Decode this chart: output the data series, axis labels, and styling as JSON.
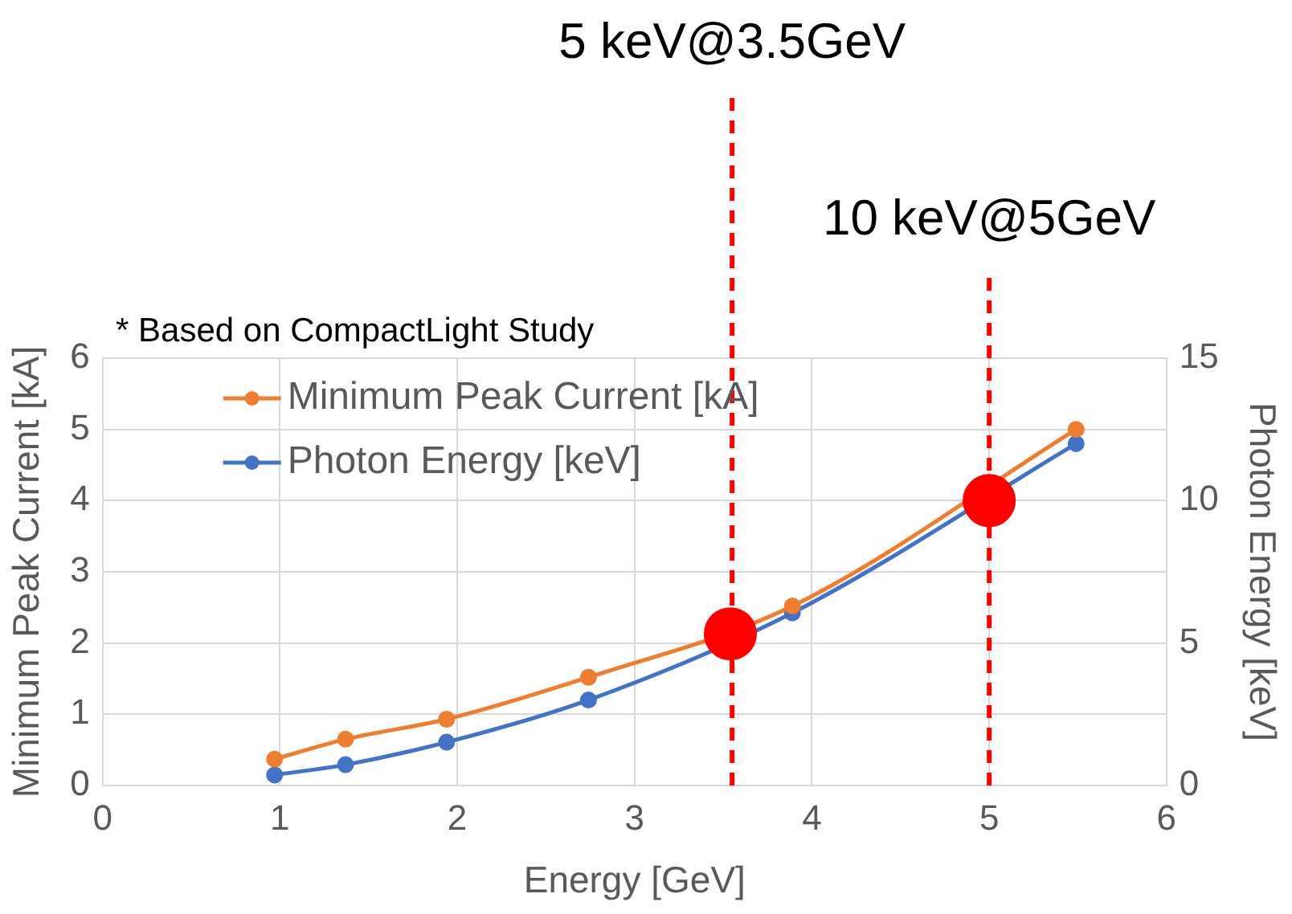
{
  "chart_data": {
    "type": "line",
    "xlabel": "Energy [GeV]",
    "ylabel": "Minimum Peak Current [kA]",
    "y2label": "Photon Energy [keV]",
    "xlim": [
      0,
      6
    ],
    "xticks": [
      0,
      1,
      2,
      3,
      4,
      5,
      6
    ],
    "ylim": [
      0,
      6
    ],
    "yticks": [
      0,
      1,
      2,
      3,
      4,
      5,
      6
    ],
    "y2lim": [
      0,
      15
    ],
    "y2ticks": [
      0,
      5,
      10,
      15
    ],
    "series": [
      {
        "name": "Minimum Peak Current [kA]",
        "color": "#ed7d31",
        "x": [
          0.97,
          1.37,
          1.94,
          2.74,
          3.89,
          5.49
        ],
        "values": [
          0.37,
          0.65,
          0.93,
          1.52,
          2.52,
          5.0
        ]
      },
      {
        "name": "Photon Energy [keV]",
        "color": "#4472c4",
        "axis": "y2",
        "x": [
          0.97,
          1.37,
          1.94,
          2.74,
          3.89,
          5.49
        ],
        "values": [
          0.37,
          0.73,
          1.52,
          3.0,
          6.06,
          12.0
        ]
      },
      {
        "type": "scatter",
        "color": "#ff0000",
        "x": [
          3.54,
          5.0
        ],
        "values": [
          2.13,
          4.0
        ]
      }
    ],
    "ref_lines": [
      {
        "axis": "x",
        "value": 3.55,
        "label": "5 keV@3.5GeV",
        "color": "#ff0000",
        "line_style": "dashed"
      },
      {
        "axis": "x",
        "value": 5.0,
        "label": "10 keV@5GeV",
        "color": "#ff0000",
        "line_style": "dashed"
      }
    ],
    "annotations": [
      "* Based on CompactLight Study"
    ],
    "grid": true,
    "legend": "top left",
    "marker": "circle",
    "line_style": "solid"
  }
}
